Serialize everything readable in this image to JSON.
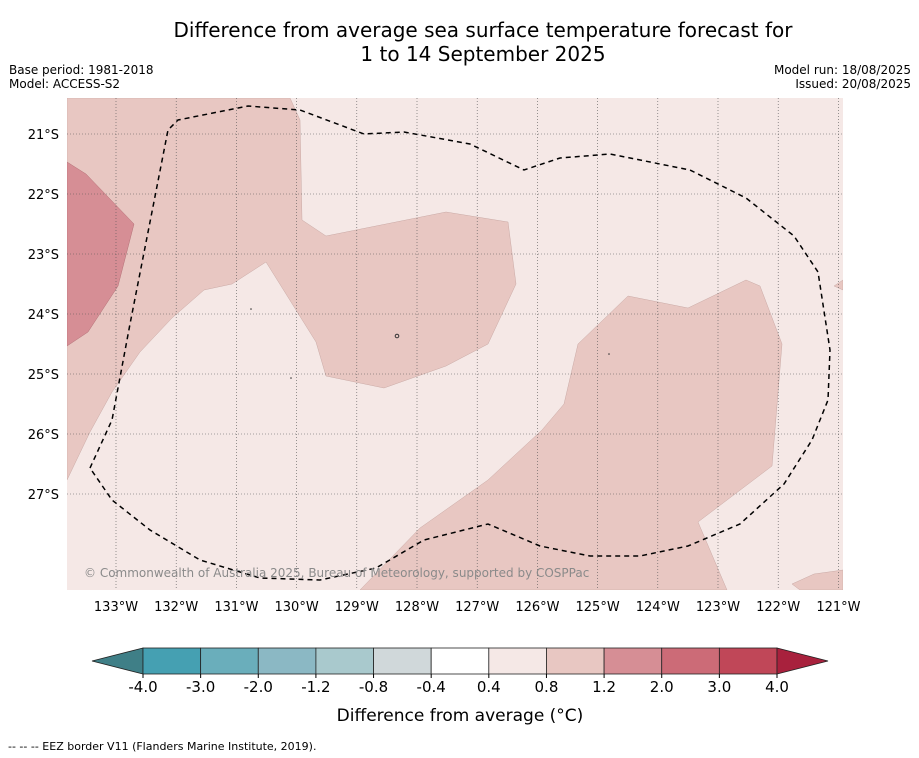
{
  "title_line1": "Difference from average sea surface temperature forecast for",
  "title_line2": "1 to 14 September 2025",
  "meta_left": {
    "base_period": "Base period: 1981-2018",
    "model": "Model: ACCESS-S2"
  },
  "meta_right": {
    "model_run": "Model run: 18/08/2025",
    "issued": "Issued: 20/08/2025"
  },
  "map": {
    "lon_ticks": [
      "133°W",
      "132°W",
      "131°W",
      "130°W",
      "129°W",
      "128°W",
      "127°W",
      "126°W",
      "125°W",
      "124°W",
      "123°W",
      "122°W",
      "121°W"
    ],
    "lat_ticks": [
      "21°S",
      "22°S",
      "23°S",
      "24°S",
      "25°S",
      "26°S",
      "27°S"
    ],
    "copyright": "© Commonwealth of Australia 2025, Bureau of Meteorology, supported by COSPPac"
  },
  "colorbar": {
    "labels": [
      "-4.0",
      "-3.0",
      "-2.0",
      "-1.2",
      "-0.8",
      "-0.4",
      "0.4",
      "0.8",
      "1.2",
      "2.0",
      "3.0",
      "4.0"
    ],
    "colors": [
      "#3f7f87",
      "#45a0b2",
      "#6aaebb",
      "#8bb8c4",
      "#a9c9cd",
      "#d0d8da",
      "#ffffff",
      "#f5e8e6",
      "#e8c7c2",
      "#d68e95",
      "#cc6b77",
      "#c04758",
      "#a8213d"
    ],
    "title": "Difference from average (°C)"
  },
  "footnote": "--  --  -- EEZ border V11 (Flanders Marine Institute, 2019)."
}
